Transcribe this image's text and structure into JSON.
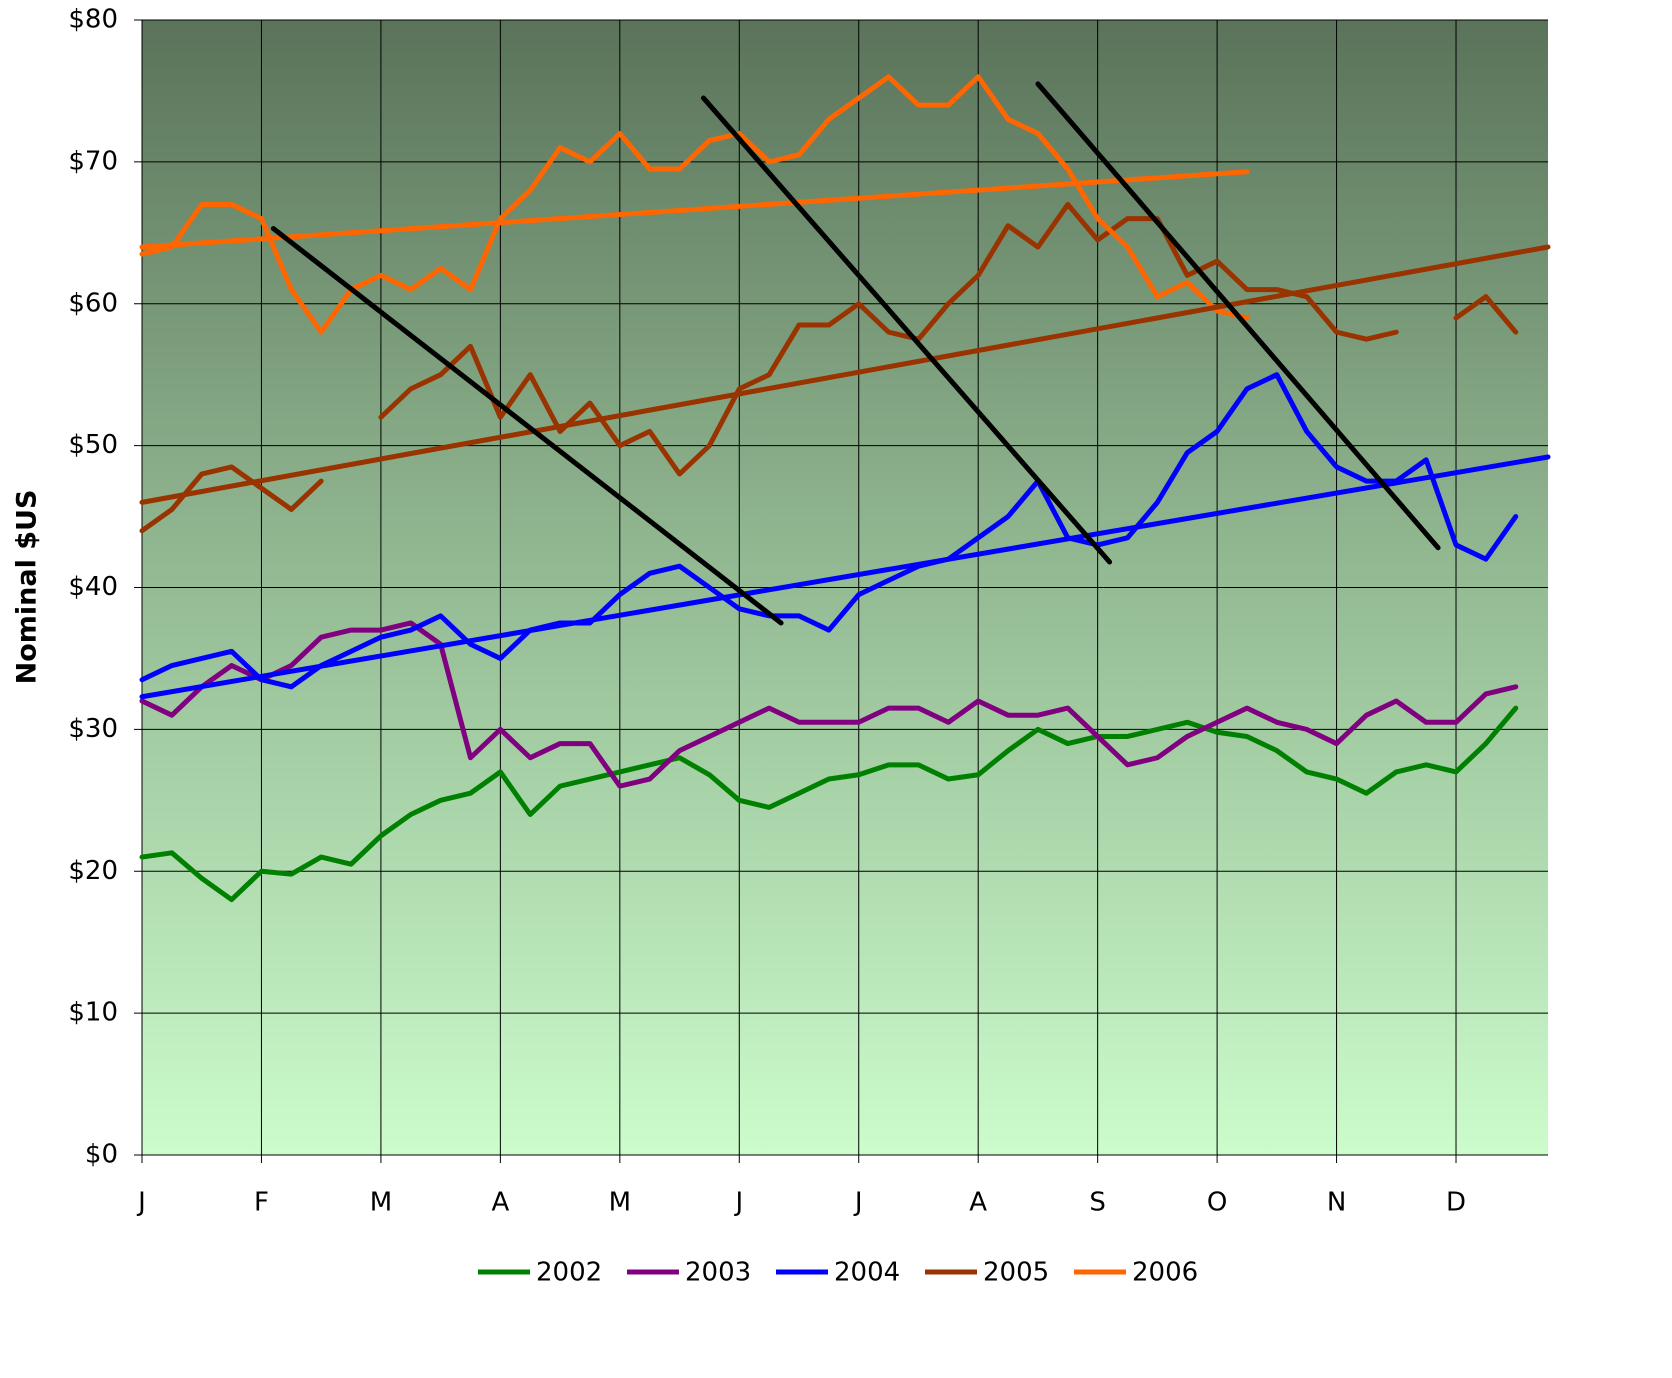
{
  "chart_data": {
    "type": "line",
    "y_label": "Nominal $US",
    "x": [
      0,
      0.25,
      0.5,
      0.75,
      1,
      1.25,
      1.5,
      1.75,
      2,
      2.25,
      2.5,
      2.75,
      3,
      3.25,
      3.5,
      3.75,
      4,
      4.25,
      4.5,
      4.75,
      5,
      5.25,
      5.5,
      5.75,
      6,
      6.25,
      6.5,
      6.75,
      7,
      7.25,
      7.5,
      7.75,
      8,
      8.25,
      8.5,
      8.75,
      9,
      9.25,
      9.5,
      9.75,
      10,
      10.25,
      10.5,
      10.75,
      11,
      11.25,
      11.5
    ],
    "xlim": [
      0,
      11.77
    ],
    "xticks": [
      {
        "value": 0,
        "label": "J"
      },
      {
        "value": 1,
        "label": "F"
      },
      {
        "value": 2,
        "label": "M"
      },
      {
        "value": 3,
        "label": "A"
      },
      {
        "value": 4,
        "label": "M"
      },
      {
        "value": 5,
        "label": "J"
      },
      {
        "value": 6,
        "label": "J"
      },
      {
        "value": 7,
        "label": "A"
      },
      {
        "value": 8,
        "label": "S"
      },
      {
        "value": 9,
        "label": "O"
      },
      {
        "value": 10,
        "label": "N"
      },
      {
        "value": 11,
        "label": "D"
      }
    ],
    "ylim": [
      0,
      80
    ],
    "yticks": [
      {
        "value": 0,
        "label": "$0"
      },
      {
        "value": 10,
        "label": "$10"
      },
      {
        "value": 20,
        "label": "$20"
      },
      {
        "value": 30,
        "label": "$30"
      },
      {
        "value": 40,
        "label": "$40"
      },
      {
        "value": 50,
        "label": "$50"
      },
      {
        "value": 60,
        "label": "$60"
      },
      {
        "value": 70,
        "label": "$70"
      },
      {
        "value": 80,
        "label": "$80"
      }
    ],
    "grid": true,
    "legend": "bottom",
    "series": [
      {
        "name": "2002",
        "color": "#008000",
        "values": [
          21,
          21.3,
          19.5,
          18,
          20,
          19.8,
          21,
          20.5,
          22.5,
          24,
          25,
          25.5,
          27,
          24,
          26,
          26.5,
          27,
          27.5,
          28,
          26.8,
          25,
          24.5,
          25.5,
          26.5,
          26.8,
          27.5,
          27.5,
          26.5,
          26.8,
          28.5,
          30,
          29,
          29.5,
          29.5,
          30,
          30.5,
          29.8,
          29.5,
          28.5,
          27,
          26.5,
          25.5,
          27,
          27.5,
          27,
          29,
          31.5
        ]
      },
      {
        "name": "2003",
        "color": "#800080",
        "values": [
          32,
          31,
          33,
          34.5,
          33.5,
          34.5,
          36.5,
          37,
          37,
          37.5,
          36,
          28,
          30,
          28,
          29,
          29,
          26,
          26.5,
          28.5,
          29.5,
          30.5,
          31.5,
          30.5,
          30.5,
          30.5,
          31.5,
          31.5,
          30.5,
          32,
          31,
          31,
          31.5,
          29.5,
          27.5,
          28,
          29.5,
          30.5,
          31.5,
          30.5,
          30,
          29,
          31,
          32,
          30.5,
          30.5,
          32.5,
          33
        ]
      },
      {
        "name": "2004",
        "color": "#0000ff",
        "values": [
          33.5,
          34.5,
          35,
          35.5,
          33.5,
          33,
          34.5,
          35.5,
          36.5,
          37,
          38,
          36,
          35,
          37,
          37.5,
          37.5,
          39.5,
          41,
          41.5,
          40,
          38.5,
          38,
          38,
          37,
          39.5,
          40.5,
          41.5,
          42,
          43.5,
          45,
          47.5,
          43.5,
          43,
          43.5,
          46,
          49.5,
          51,
          54,
          55,
          51,
          48.5,
          47.5,
          47.5,
          49,
          43,
          42,
          45
        ]
      },
      {
        "name": "2005",
        "color": "#993300",
        "values": [
          44,
          45.5,
          48,
          48.5,
          47,
          45.5,
          47.5,
          null,
          52,
          54,
          55,
          57,
          52,
          55,
          51,
          53,
          50,
          51,
          48,
          50,
          54,
          55,
          58.5,
          58.5,
          60,
          58,
          57.5,
          60,
          62,
          65.5,
          64,
          67,
          64.5,
          66,
          66,
          62,
          63,
          61,
          61,
          60.5,
          58,
          57.5,
          58,
          null,
          59,
          60.5,
          58
        ]
      },
      {
        "name": "2006",
        "color": "#ff6600",
        "values": [
          63.5,
          64,
          67,
          67,
          66,
          61,
          58,
          61,
          62,
          61,
          62.5,
          61,
          66,
          68,
          71,
          70,
          72,
          69.5,
          69.5,
          71.5,
          72,
          70,
          70.5,
          73,
          74.5,
          76,
          74,
          74,
          76,
          73,
          72,
          69.5,
          66,
          64,
          60.5,
          61.5,
          59.5,
          59,
          null,
          null,
          null,
          null,
          null,
          null,
          null,
          null,
          null
        ]
      }
    ],
    "trendlines": [
      {
        "color": "#ff6600",
        "x": [
          0,
          9.25
        ],
        "values": [
          64,
          69.3
        ]
      },
      {
        "color": "#993300",
        "x": [
          0,
          11.77
        ],
        "values": [
          46,
          64
        ]
      },
      {
        "color": "#0000ff",
        "x": [
          0,
          11.77
        ],
        "values": [
          32.3,
          49.2
        ]
      },
      {
        "color": "#000000",
        "x": [
          1.1,
          5.35
        ],
        "values": [
          65.3,
          37.5
        ]
      },
      {
        "color": "#000000",
        "x": [
          4.7,
          8.1
        ],
        "values": [
          74.5,
          41.8
        ]
      },
      {
        "color": "#000000",
        "x": [
          7.5,
          10.85
        ],
        "values": [
          75.5,
          42.8
        ]
      }
    ]
  }
}
